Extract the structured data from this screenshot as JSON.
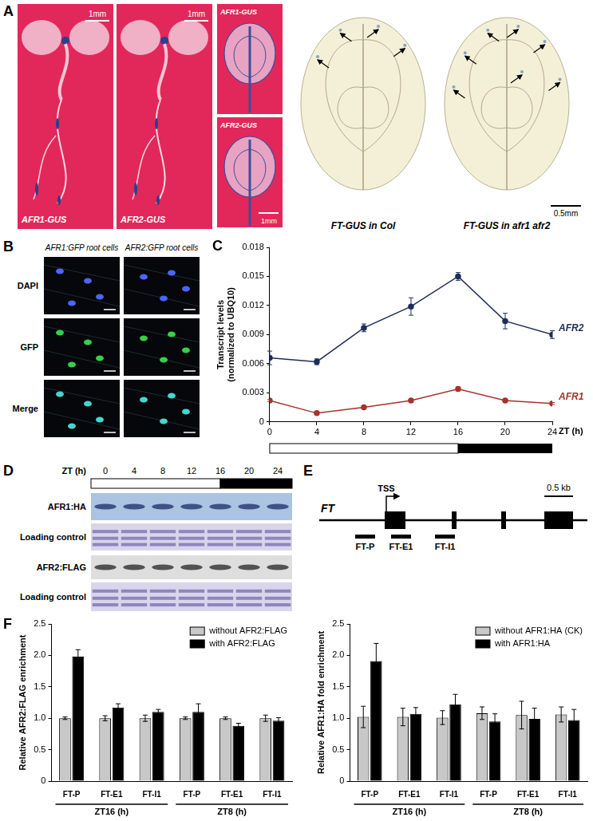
{
  "figure": {
    "A": {
      "letter": "A",
      "seedlings": [
        {
          "label": "AFR1-GUS",
          "scale_bar": "1mm"
        },
        {
          "label": "AFR2-GUS",
          "scale_bar": "1mm"
        }
      ],
      "cotyledons": [
        {
          "label": "AFR1-GUS"
        },
        {
          "label": "AFR2-GUS",
          "scale_bar": "1mm"
        }
      ],
      "ft_leaves": [
        {
          "label": "FT-GUS in Col"
        },
        {
          "label": "FT-GUS in afr1 afr2",
          "scale_bar": "0.5mm"
        }
      ]
    },
    "B": {
      "letter": "B",
      "columns": [
        "AFR1:GFP root cells",
        "AFR2:GFP root cells"
      ],
      "rows": [
        "DAPI",
        "GFP",
        "Merge"
      ]
    },
    "D": {
      "letter": "D",
      "zt_label": "ZT (h)",
      "zt": [
        0,
        4,
        8,
        12,
        16,
        20,
        24
      ],
      "photoperiod": {
        "light": [
          0,
          16
        ],
        "dark": [
          16,
          24
        ]
      },
      "blots": [
        "AFR1:HA",
        "Loading control",
        "AFR2:FLAG",
        "Loading control"
      ]
    },
    "E": {
      "letter": "E",
      "gene": "FT",
      "tss": "TSS",
      "scale_bar": "0.5 kb",
      "amplicons": [
        "FT-P",
        "FT-E1",
        "FT-I1"
      ]
    }
  },
  "chart_data": [
    {
      "panel": "C",
      "type": "line",
      "x_label": "ZT (h)",
      "y_label": "Transcript levels (normalized to UBQ10)",
      "x": [
        0,
        4,
        8,
        12,
        16,
        20,
        24
      ],
      "xlim": [
        0,
        24
      ],
      "xticks": [
        0,
        4,
        8,
        12,
        16,
        20,
        24
      ],
      "ylim": [
        0,
        0.018
      ],
      "yticks": [
        0,
        0.003,
        0.006,
        0.009,
        0.012,
        0.015,
        0.018
      ],
      "grid": false,
      "photoperiod": {
        "light": [
          0,
          16
        ],
        "dark": [
          16,
          24
        ]
      },
      "series": [
        {
          "name": "AFR2",
          "color": "#1f2d5a",
          "marker": "circle",
          "values": [
            0.0066,
            0.0062,
            0.0097,
            0.0119,
            0.015,
            0.0104,
            0.009
          ],
          "errors": [
            0.0007,
            0.0003,
            0.0004,
            0.0009,
            0.0004,
            0.0008,
            0.0004
          ]
        },
        {
          "name": "AFR1",
          "color": "#a8322a",
          "marker": "circle",
          "values": [
            0.0022,
            0.0009,
            0.0015,
            0.0022,
            0.0034,
            0.0022,
            0.0019
          ],
          "errors": [
            0.0001,
            0.0001,
            0.0001,
            0.0001,
            0.0002,
            0.0001,
            0.0001
          ]
        }
      ]
    },
    {
      "panel": "F",
      "type": "bar",
      "y_label": "Relative AFR2:FLAG enrichment",
      "categories": [
        "FT-P",
        "FT-E1",
        "FT-I1",
        "FT-P",
        "FT-E1",
        "FT-I1"
      ],
      "groups": [
        "ZT16 (h)",
        "ZT8 (h)"
      ],
      "ylim": [
        0,
        2.5
      ],
      "yticks": [
        0,
        0.5,
        {
          "value": 1,
          "label": "1.0"
        },
        1.5,
        {
          "value": 2,
          "label": "2.0"
        },
        2.5
      ],
      "grid": false,
      "legend": "upper right",
      "series": [
        {
          "name": "without AFR2:FLAG",
          "color": "#c8c8c8",
          "values": [
            1.0,
            1.0,
            1.0,
            1.0,
            1.0,
            1.0
          ],
          "errors": [
            0.02,
            0.04,
            0.05,
            0.02,
            0.02,
            0.05
          ]
        },
        {
          "name": "with AFR2:FLAG",
          "color": "#000000",
          "values": [
            1.98,
            1.17,
            1.1,
            1.1,
            0.88,
            0.96
          ],
          "errors": [
            0.11,
            0.06,
            0.04,
            0.13,
            0.04,
            0.05
          ]
        }
      ]
    },
    {
      "type": "bar",
      "y_label": "Relative AFR1:HA fold enrichment",
      "categories": [
        "FT-P",
        "FT-E1",
        "FT-I1",
        "FT-P",
        "FT-E1",
        "FT-I1"
      ],
      "groups": [
        "ZT16 (h)",
        "ZT8 (h)"
      ],
      "ylim": [
        0,
        2.5
      ],
      "yticks": [
        0,
        0.5,
        {
          "value": 1,
          "label": "1.0"
        },
        1.5,
        {
          "value": 2,
          "label": "2.0"
        },
        2.5
      ],
      "grid": false,
      "legend": "upper right",
      "series": [
        {
          "name": "without AFR1:HA (CK)",
          "color": "#c8c8c8",
          "values": [
            1.02,
            1.02,
            1.01,
            1.08,
            1.05,
            1.06
          ],
          "errors": [
            0.17,
            0.14,
            0.11,
            0.1,
            0.22,
            0.12
          ]
        },
        {
          "name": "with AFR1:HA",
          "color": "#000000",
          "values": [
            1.91,
            1.07,
            1.22,
            0.95,
            0.99,
            0.97
          ],
          "errors": [
            0.28,
            0.1,
            0.16,
            0.12,
            0.17,
            0.17
          ]
        }
      ]
    }
  ]
}
